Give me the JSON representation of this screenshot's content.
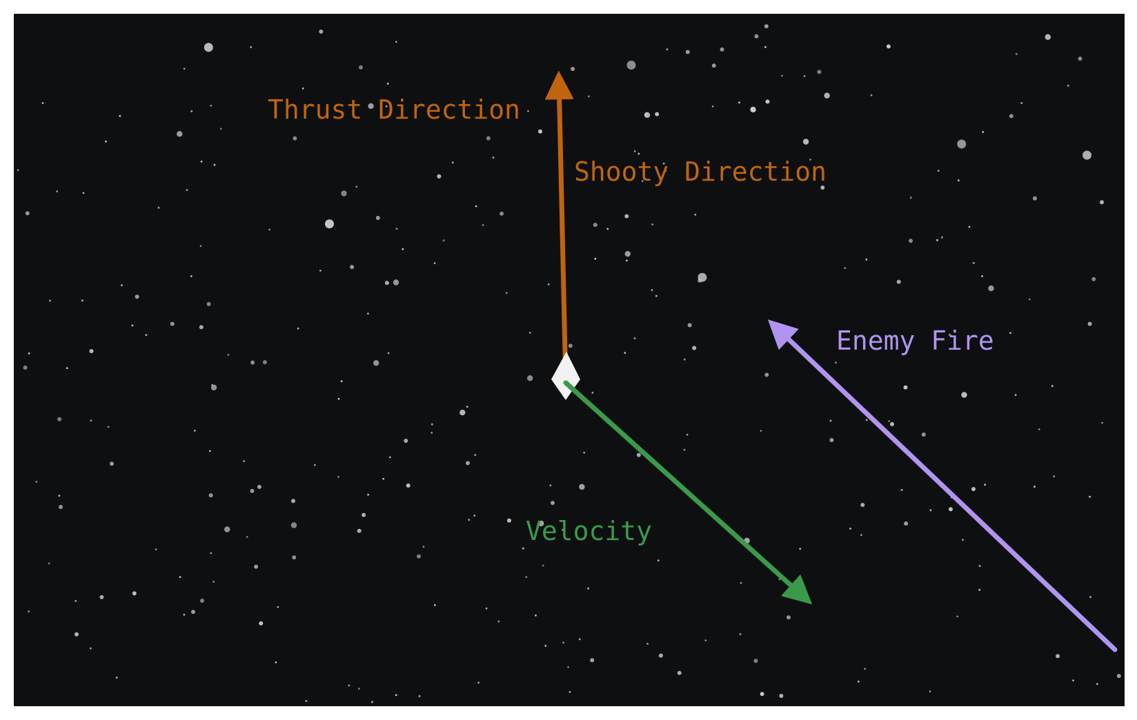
{
  "labels": {
    "thrust": "Thrust Direction",
    "shooty": "Shooty Direction",
    "velocity": "Velocity",
    "enemy_fire": "Enemy Fire"
  },
  "colors": {
    "background": "#0e0f11",
    "thrust": "#c0650d",
    "velocity": "#3b9a4a",
    "enemy_fire": "#b094f0",
    "ship": "#f2f2f2",
    "stars": "#c9c9c9"
  },
  "icons": {
    "ship": "ship-icon",
    "stars": "star-icon"
  }
}
